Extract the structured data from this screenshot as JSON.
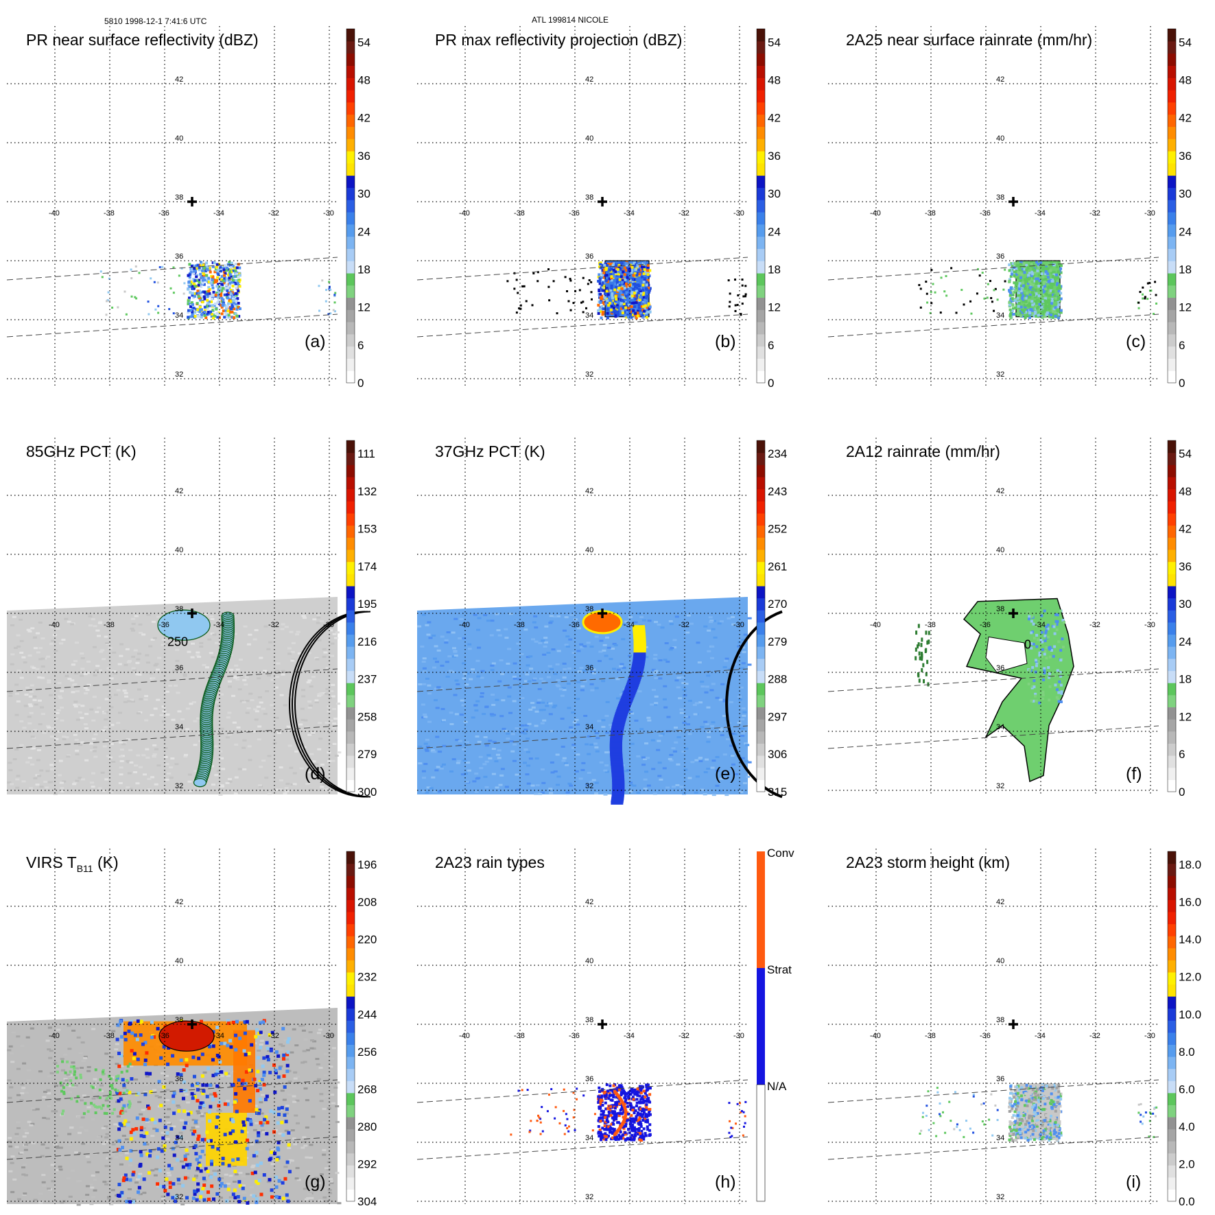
{
  "header": {
    "left": "5810 1998-12-1 7:41:6 UTC",
    "center": "ATL 199814 NICOLE"
  },
  "colors": {
    "grid": "#000000",
    "swath_edge": "#555555",
    "storm_marker": "#000000"
  },
  "chart_data": [
    {
      "type": "heatmap",
      "title": "PR near surface reflectivity (dBZ)",
      "panel_label": "(a)",
      "lon_ticks": [
        "-40",
        "-38",
        "-36",
        "-34",
        "-32",
        "-30"
      ],
      "lat_ticks": [
        "42",
        "40",
        "38",
        "36",
        "34",
        "32"
      ],
      "colorbar": {
        "ticks": [
          "54",
          "48",
          "42",
          "36",
          "30",
          "24",
          "18",
          "12",
          "6",
          "0"
        ],
        "range": [
          0,
          60
        ],
        "unit": "dBZ"
      },
      "storm_center": {
        "lon": -35.0,
        "lat": 38.0
      },
      "swath": "narrow",
      "field": "pr"
    },
    {
      "type": "heatmap",
      "title": "PR max reflectivity projection (dBZ)",
      "panel_label": "(b)",
      "lon_ticks": [
        "-40",
        "-38",
        "-36",
        "-34",
        "-32",
        "-30"
      ],
      "lat_ticks": [
        "42",
        "40",
        "38",
        "36",
        "34",
        "32"
      ],
      "colorbar": {
        "ticks": [
          "54",
          "48",
          "42",
          "36",
          "30",
          "24",
          "18",
          "12",
          "6",
          "0"
        ],
        "range": [
          0,
          60
        ],
        "unit": "dBZ"
      },
      "storm_center": {
        "lon": -35.0,
        "lat": 38.0
      },
      "swath": "narrow",
      "field": "prmax"
    },
    {
      "type": "heatmap",
      "title": "2A25 near surface rainrate (mm/hr)",
      "panel_label": "(c)",
      "lon_ticks": [
        "-40",
        "-38",
        "-36",
        "-34",
        "-32",
        "-30"
      ],
      "lat_ticks": [
        "42",
        "40",
        "38",
        "36",
        "34",
        "32"
      ],
      "colorbar": {
        "ticks": [
          "54",
          "48",
          "42",
          "36",
          "30",
          "24",
          "18",
          "12",
          "6",
          "0"
        ],
        "range": [
          0,
          60
        ],
        "unit": "mm/hr"
      },
      "storm_center": {
        "lon": -35.0,
        "lat": 38.0
      },
      "swath": "narrow",
      "field": "rain"
    },
    {
      "type": "heatmap",
      "title": "85GHz PCT (K)",
      "panel_label": "(d)",
      "lon_ticks": [
        "-40",
        "-38",
        "-36",
        "-34",
        "-32",
        "-30"
      ],
      "lat_ticks": [
        "42",
        "40",
        "38",
        "36",
        "34",
        "32"
      ],
      "colorbar": {
        "ticks": [
          "111",
          "132",
          "153",
          "174",
          "195",
          "216",
          "237",
          "258",
          "279",
          "300"
        ],
        "range": [
          300,
          90
        ],
        "unit": "K"
      },
      "contour_label": "250",
      "storm_center": {
        "lon": -35.0,
        "lat": 38.0
      },
      "swath": "wide",
      "field": "pct85"
    },
    {
      "type": "heatmap",
      "title": "37GHz PCT (K)",
      "panel_label": "(e)",
      "lon_ticks": [
        "-40",
        "-38",
        "-36",
        "-34",
        "-32",
        "-30"
      ],
      "lat_ticks": [
        "42",
        "40",
        "38",
        "36",
        "34",
        "32"
      ],
      "colorbar": {
        "ticks": [
          "234",
          "243",
          "252",
          "261",
          "270",
          "279",
          "288",
          "297",
          "306",
          "315"
        ],
        "range": [
          315,
          225
        ],
        "unit": "K"
      },
      "storm_center": {
        "lon": -35.0,
        "lat": 38.0
      },
      "swath": "wide",
      "field": "pct37"
    },
    {
      "type": "heatmap",
      "title": "2A12 rainrate (mm/hr)",
      "panel_label": "(f)",
      "lon_ticks": [
        "-40",
        "-38",
        "-36",
        "-34",
        "-32",
        "-30"
      ],
      "lat_ticks": [
        "42",
        "40",
        "38",
        "36",
        "34",
        "32"
      ],
      "colorbar": {
        "ticks": [
          "54",
          "48",
          "42",
          "36",
          "30",
          "24",
          "18",
          "12",
          "6",
          "0"
        ],
        "range": [
          0,
          60
        ],
        "unit": "mm/hr"
      },
      "contour_label": "0",
      "storm_center": {
        "lon": -35.0,
        "lat": 38.0
      },
      "swath": "wide",
      "field": "rain12"
    },
    {
      "type": "heatmap",
      "title": "VIRS T",
      "title_sub": "B11",
      "title_suffix": " (K)",
      "panel_label": "(g)",
      "lon_ticks": [
        "-40",
        "-38",
        "-36",
        "-34",
        "-32",
        "-30"
      ],
      "lat_ticks": [
        "42",
        "40",
        "38",
        "36",
        "34",
        "32"
      ],
      "colorbar": {
        "ticks": [
          "196",
          "208",
          "220",
          "232",
          "244",
          "256",
          "268",
          "280",
          "292",
          "304"
        ],
        "range": [
          304,
          184
        ],
        "unit": "K"
      },
      "storm_center": {
        "lon": -35.0,
        "lat": 38.0
      },
      "swath": "wide",
      "field": "virs"
    },
    {
      "type": "heatmap",
      "title": "2A23 rain types",
      "panel_label": "(h)",
      "lon_ticks": [
        "-40",
        "-38",
        "-36",
        "-34",
        "-32",
        "-30"
      ],
      "lat_ticks": [
        "42",
        "40",
        "38",
        "36",
        "34",
        "32"
      ],
      "colorbar": {
        "categories": [
          "Conv",
          "Strat",
          "N/A"
        ]
      },
      "storm_center": {
        "lon": -35.0,
        "lat": 38.0
      },
      "swath": "narrow",
      "field": "types"
    },
    {
      "type": "heatmap",
      "title": "2A23 storm height (km)",
      "panel_label": "(i)",
      "lon_ticks": [
        "-40",
        "-38",
        "-36",
        "-34",
        "-32",
        "-30"
      ],
      "lat_ticks": [
        "42",
        "40",
        "38",
        "36",
        "34",
        "32"
      ],
      "colorbar": {
        "ticks": [
          "18.0",
          "16.0",
          "14.0",
          "12.0",
          "10.0",
          "8.0",
          "6.0",
          "4.0",
          "2.0",
          "0.0"
        ],
        "range": [
          0,
          20
        ],
        "unit": "km"
      },
      "storm_center": {
        "lon": -35.0,
        "lat": 38.0
      },
      "swath": "narrow",
      "field": "height"
    }
  ]
}
